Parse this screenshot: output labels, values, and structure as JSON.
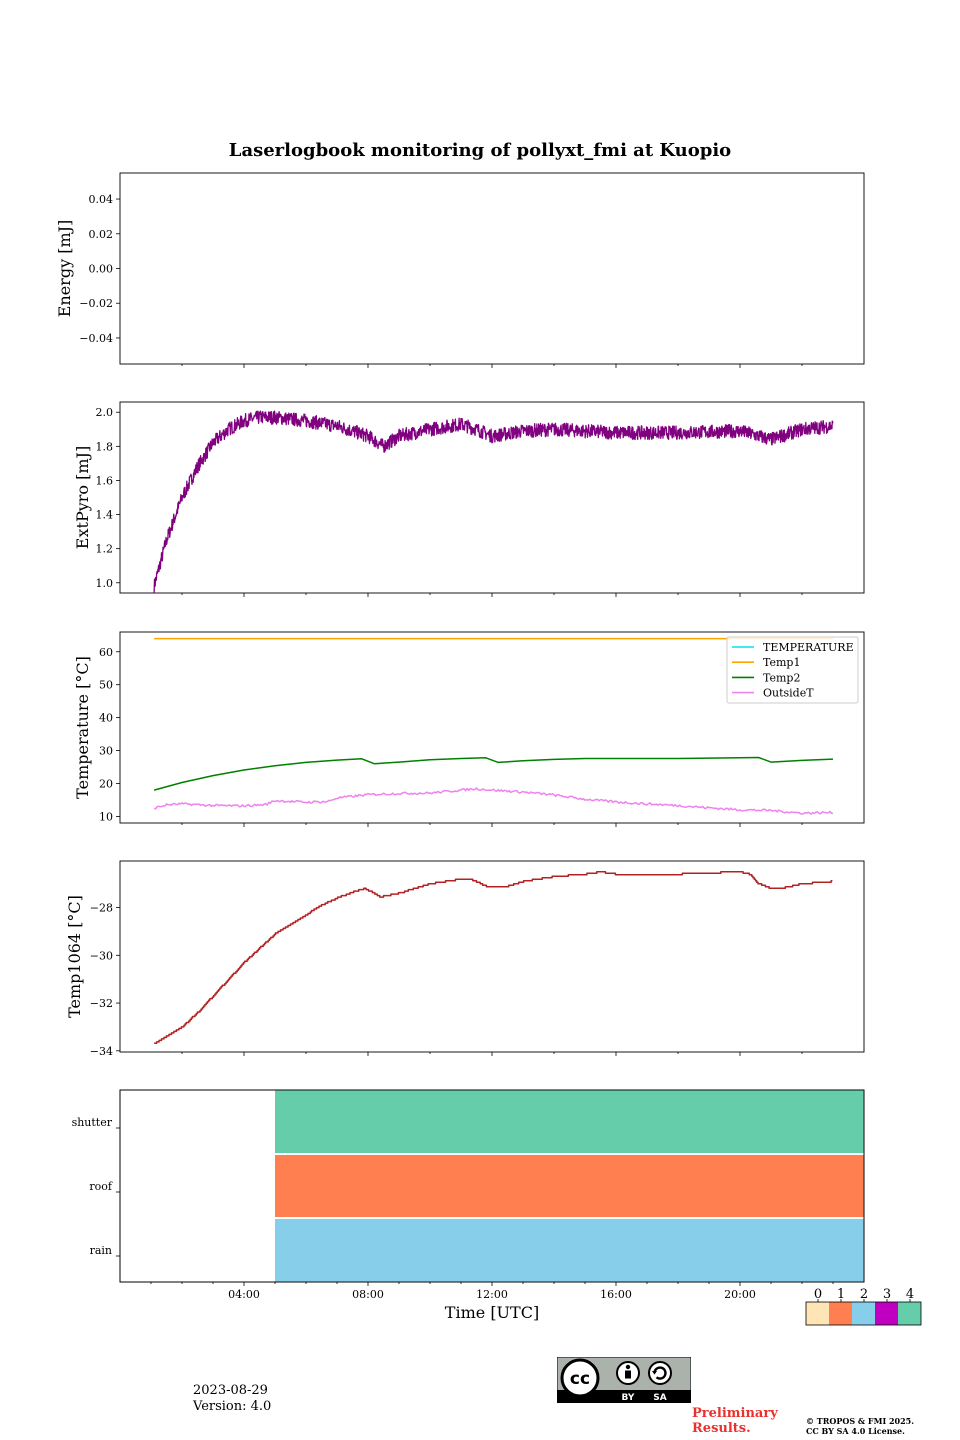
{
  "title": "Laserlogbook monitoring of pollyxt_fmi at Kuopio",
  "chart_data": [
    {
      "id": "energy",
      "type": "line",
      "ylabel": "Energy [mJ]",
      "ylim": [
        -0.055,
        0.055
      ],
      "yticks": [
        0.04,
        0.02,
        0.0,
        -0.02,
        -0.04
      ],
      "yticklabels": [
        "0.04",
        "0.02",
        "0.00",
        "−0.02",
        "−0.04"
      ],
      "series": []
    },
    {
      "id": "extpyro",
      "type": "line",
      "ylabel": "ExtPyro [mJ]",
      "ylim": [
        0.94,
        2.06
      ],
      "yticks": [
        1.0,
        1.2,
        1.4,
        1.6,
        1.8,
        2.0
      ],
      "yticklabels": [
        "1.0",
        "1.2",
        "1.4",
        "1.6",
        "1.8",
        "2.0"
      ],
      "series": [
        {
          "name": "ExtPyro",
          "color": "#800080",
          "noise": 0.04,
          "x": [
            1.1,
            1.5,
            2.0,
            2.5,
            3.0,
            3.5,
            4.0,
            4.5,
            5.0,
            5.5,
            6.0,
            7.0,
            8.0,
            8.5,
            9.0,
            10.0,
            11.0,
            11.5,
            12.0,
            13.0,
            14.0,
            16.0,
            18.0,
            20.0,
            21.0,
            22.0,
            23.0
          ],
          "y": [
            0.98,
            1.25,
            1.5,
            1.68,
            1.82,
            1.9,
            1.95,
            1.97,
            1.97,
            1.96,
            1.95,
            1.92,
            1.86,
            1.8,
            1.86,
            1.9,
            1.93,
            1.9,
            1.86,
            1.89,
            1.9,
            1.88,
            1.88,
            1.89,
            1.84,
            1.9,
            1.92
          ]
        }
      ]
    },
    {
      "id": "temperature",
      "type": "line",
      "ylabel": "Temperature [°C]",
      "ylim": [
        8,
        66
      ],
      "yticks": [
        10,
        20,
        30,
        40,
        50,
        60
      ],
      "yticklabels": [
        "10",
        "20",
        "30",
        "40",
        "50",
        "60"
      ],
      "legend": "top-right",
      "series": [
        {
          "name": "TEMPERATURE",
          "color": "#00e5ee",
          "x": [],
          "y": []
        },
        {
          "name": "Temp1",
          "color": "#ffa500",
          "x": [
            1.1,
            23.0
          ],
          "y": [
            64,
            64
          ]
        },
        {
          "name": "Temp2",
          "color": "#008000",
          "x": [
            1.1,
            2,
            3,
            4,
            5,
            6,
            7,
            7.8,
            8.2,
            9,
            10,
            11,
            11.8,
            12.2,
            13,
            14,
            15,
            16,
            17,
            18,
            19,
            20,
            20.6,
            21,
            22,
            23
          ],
          "y": [
            18,
            20.3,
            22.4,
            24.1,
            25.4,
            26.4,
            27.1,
            27.5,
            26.0,
            26.5,
            27.2,
            27.6,
            27.8,
            26.4,
            26.9,
            27.3,
            27.6,
            27.6,
            27.6,
            27.6,
            27.7,
            27.8,
            27.9,
            26.5,
            27.0,
            27.4
          ]
        },
        {
          "name": "OutsideT",
          "color": "#ee82ee",
          "noise": 0.35,
          "x": [
            1.1,
            1.5,
            2,
            3,
            4,
            4.7,
            5,
            6,
            6.7,
            7,
            8,
            9,
            10,
            11,
            11.5,
            12,
            13,
            14,
            15,
            16,
            17,
            18,
            19,
            20,
            21,
            22,
            23
          ],
          "y": [
            12.5,
            13.5,
            13.8,
            13.3,
            13.2,
            13.6,
            14.8,
            14.3,
            14.5,
            15.6,
            16.6,
            17.0,
            17.1,
            18.0,
            18.4,
            18.0,
            17.4,
            16.5,
            15.2,
            14.4,
            13.8,
            13.3,
            12.6,
            12.0,
            11.8,
            11.0,
            11.2
          ]
        }
      ]
    },
    {
      "id": "temp1064",
      "type": "line",
      "ylabel": "Temp1064 [°C]",
      "ylim": [
        -34.05,
        -26.05
      ],
      "yticks": [
        -28,
        -30,
        -32,
        -34
      ],
      "yticklabels": [
        "−28",
        "−30",
        "−32",
        "−34"
      ],
      "series": [
        {
          "name": "Temp1064",
          "color": "#b22222",
          "step": 0.0625,
          "x": [
            1.1,
            1.5,
            2,
            2.5,
            3,
            3.5,
            4,
            4.5,
            5,
            5.5,
            6,
            6.5,
            7,
            7.5,
            7.9,
            8.4,
            9,
            10,
            11,
            11.3,
            11.8,
            12.5,
            13,
            14,
            15,
            15.5,
            16,
            17,
            18,
            19,
            20,
            20.3,
            20.6,
            21,
            21.5,
            22,
            23
          ],
          "y": [
            -33.7,
            -33.4,
            -33.0,
            -32.4,
            -31.7,
            -31.0,
            -30.3,
            -29.7,
            -29.1,
            -28.7,
            -28.3,
            -27.9,
            -27.6,
            -27.35,
            -27.2,
            -27.55,
            -27.4,
            -27.0,
            -26.8,
            -26.8,
            -27.1,
            -27.1,
            -26.9,
            -26.7,
            -26.6,
            -26.5,
            -26.6,
            -26.6,
            -26.6,
            -26.55,
            -26.5,
            -26.6,
            -27.0,
            -27.2,
            -27.15,
            -27.0,
            -26.9
          ]
        }
      ]
    },
    {
      "id": "flags",
      "type": "heatmap",
      "xlabel": "Time [UTC]",
      "rows": [
        "shutter",
        "roof",
        "rain"
      ],
      "xlim": [
        0,
        24
      ],
      "xticks": [
        4,
        8,
        12,
        16,
        20
      ],
      "xticklabels": [
        "04:00",
        "08:00",
        "12:00",
        "16:00",
        "20:00"
      ],
      "blocks": [
        {
          "row": "shutter",
          "x0": 5.0,
          "x1": 24,
          "value": 4
        },
        {
          "row": "roof",
          "x0": 5.0,
          "x1": 24,
          "value": 1
        },
        {
          "row": "rain",
          "x0": 5.0,
          "x1": 24,
          "value": 2
        }
      ],
      "colorbar": {
        "labels": [
          "0",
          "1",
          "2",
          "3",
          "4"
        ],
        "colors": [
          "#ffe4b5",
          "#ff7f50",
          "#87ceeb",
          "#c000c0",
          "#66cdaa"
        ]
      }
    }
  ],
  "footer": {
    "date": "2023-08-29",
    "version": "Version: 4.0",
    "preliminary_1": "Preliminary",
    "preliminary_2": "Results.",
    "copyright_1": "© TROPOS & FMI 2025.",
    "copyright_2": "CC BY SA 4.0 License.",
    "cc": "cc",
    "cc_by": "BY",
    "cc_sa": "SA"
  }
}
